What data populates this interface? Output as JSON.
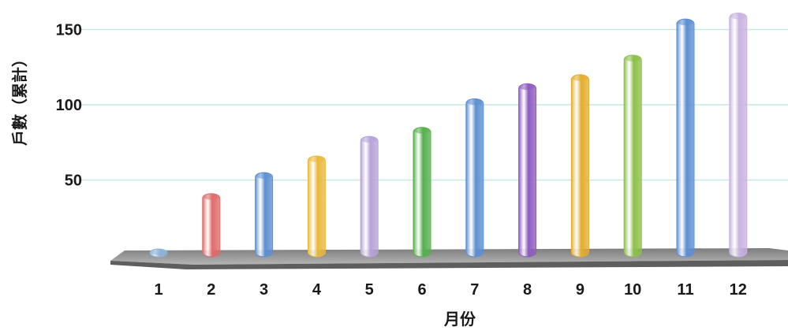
{
  "chart_data": {
    "type": "bar",
    "title": "",
    "xlabel": "月份",
    "ylabel": "戶數（累計）",
    "categories": [
      "1",
      "2",
      "3",
      "4",
      "5",
      "6",
      "7",
      "8",
      "9",
      "10",
      "11",
      "12"
    ],
    "values": [
      3,
      41,
      55,
      66,
      79,
      85,
      104,
      114,
      120,
      133,
      157,
      161
    ],
    "ylim": [
      0,
      165
    ],
    "yticks": [
      50,
      100,
      150
    ],
    "grid": true,
    "legend": "none",
    "colors": [
      "#8fb4d8",
      "#e06a6a",
      "#5d8fd3",
      "#e9b93a",
      "#b7a3d8",
      "#55b04c",
      "#5d8fd3",
      "#8e5cc0",
      "#e4ad2f",
      "#8cc04a",
      "#5d8fd3",
      "#c8b3e0"
    ],
    "gridline_color": "#c9e7e7",
    "floor_color": "#9a9a9a"
  }
}
